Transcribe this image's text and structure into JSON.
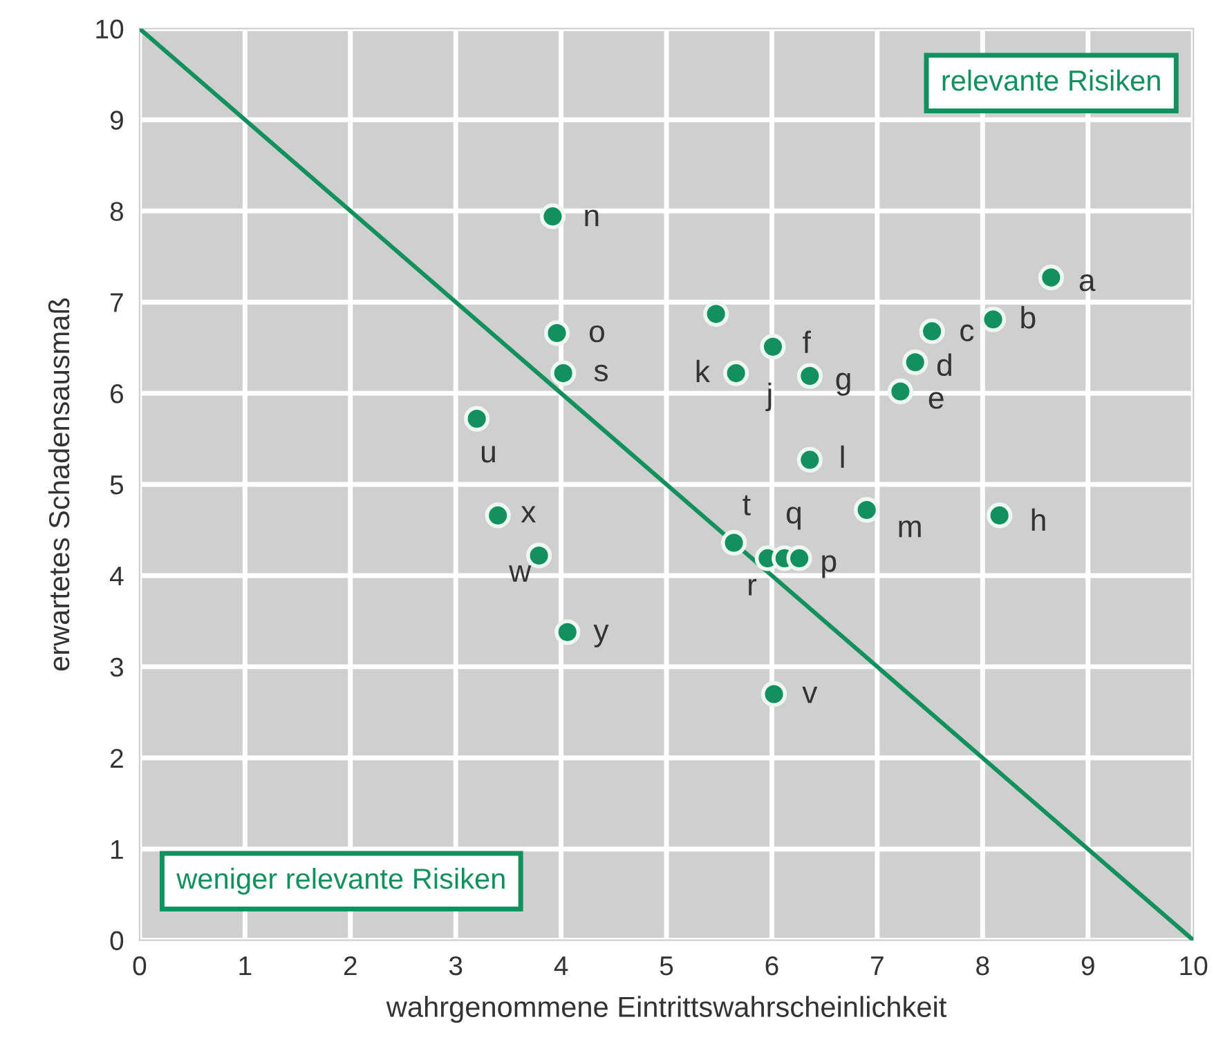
{
  "chart_data": {
    "type": "scatter",
    "xlabel": "wahrgenommene Eintrittswahrscheinlichkeit",
    "ylabel": "erwartetes Schadensausmaß",
    "xlim": [
      0,
      10
    ],
    "ylim": [
      0,
      10
    ],
    "xticks": [
      0,
      1,
      2,
      3,
      4,
      5,
      6,
      7,
      8,
      9,
      10
    ],
    "yticks": [
      0,
      1,
      2,
      3,
      4,
      5,
      6,
      7,
      8,
      9,
      10
    ],
    "grid": true,
    "series": [
      {
        "marker": "circle",
        "color": "#12905e",
        "x": [
          8.65,
          8.1,
          7.52,
          7.36,
          7.22,
          6.01,
          6.36,
          5.66,
          5.47,
          6.36,
          6.9,
          8.16,
          5.64,
          5.96,
          6.12,
          6.26,
          3.92,
          3.96,
          4.02,
          3.2,
          3.4,
          3.79,
          4.06,
          6.02
        ],
        "values": [
          7.27,
          6.81,
          6.68,
          6.34,
          6.02,
          6.51,
          6.19,
          6.22,
          6.87,
          5.27,
          4.72,
          4.66,
          4.36,
          4.19,
          4.19,
          4.19,
          7.94,
          6.66,
          6.22,
          5.72,
          4.66,
          4.22,
          3.38,
          2.7
        ]
      },
      {
        "type": "line",
        "color": "#12905e",
        "x": [
          0,
          10
        ],
        "values": [
          10,
          0
        ]
      }
    ],
    "annotations": [
      "relevante Risiken",
      "weniger relevante Risiken",
      {
        "text": "a",
        "x": 8.65,
        "y": 7.27
      },
      {
        "text": "b",
        "x": 8.1,
        "y": 6.81
      },
      {
        "text": "c",
        "x": 7.52,
        "y": 6.68
      },
      {
        "text": "d",
        "x": 7.36,
        "y": 6.34
      },
      {
        "text": "e",
        "x": 7.22,
        "y": 6.02
      },
      {
        "text": "f",
        "x": 6.01,
        "y": 6.51
      },
      {
        "text": "g",
        "x": 6.36,
        "y": 6.19
      },
      {
        "text": "j",
        "x": 5.47,
        "y": 6.87
      },
      {
        "text": "k",
        "x": 5.66,
        "y": 6.22
      },
      {
        "text": "l",
        "x": 6.36,
        "y": 5.27
      },
      {
        "text": "m",
        "x": 6.9,
        "y": 4.72
      },
      {
        "text": "h",
        "x": 8.16,
        "y": 4.66
      },
      {
        "text": "q",
        "x": 6.12,
        "y": 4.19
      },
      {
        "text": "p",
        "x": 6.26,
        "y": 4.19
      },
      {
        "text": "r",
        "x": 5.96,
        "y": 4.19
      },
      {
        "text": "t",
        "x": 5.64,
        "y": 4.36
      },
      {
        "text": "n",
        "x": 3.92,
        "y": 7.94
      },
      {
        "text": "o",
        "x": 3.96,
        "y": 6.66
      },
      {
        "text": "s",
        "x": 4.02,
        "y": 6.22
      },
      {
        "text": "u",
        "x": 3.2,
        "y": 5.72
      },
      {
        "text": "x",
        "x": 3.4,
        "y": 4.66
      },
      {
        "text": "w",
        "x": 3.79,
        "y": 4.22
      },
      {
        "text": "y",
        "x": 4.06,
        "y": 3.38
      },
      {
        "text": "v",
        "x": 6.02,
        "y": 2.7
      }
    ]
  }
}
